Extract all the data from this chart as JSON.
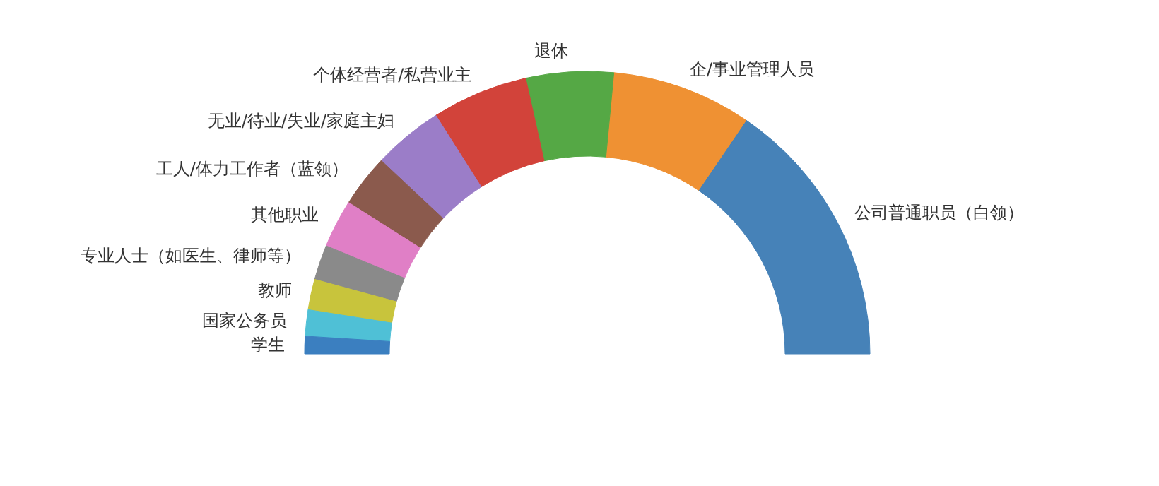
{
  "chart_data": {
    "type": "donut",
    "categories": [
      "公司普通职员（白领）",
      "企/事业管理人员",
      "退休",
      "个体经营者/私营业主",
      "无业/待业/失业/家庭主妇",
      "工人/体力工作者（蓝领）",
      "其他职业",
      "专业人士（如医生、律师等）",
      "教师",
      "国家公务员",
      "学生"
    ],
    "values": [
      31,
      16,
      10,
      11,
      8,
      6,
      5.5,
      4,
      3.5,
      3,
      2
    ],
    "colors": [
      "#4682b8",
      "#ef9133",
      "#55a845",
      "#d2433a",
      "#9b7dc8",
      "#8b5a4d",
      "#e07fc6",
      "#8a8a8a",
      "#c8c43c",
      "#4fc0d6",
      "#3b7fc0"
    ]
  }
}
